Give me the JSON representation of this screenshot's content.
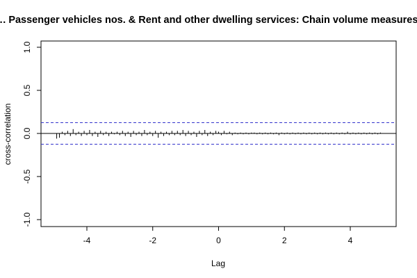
{
  "chart_data": {
    "type": "bar",
    "title": "…. Passenger vehicles nos. & Rent and other dwelling services: Chain volume measures (",
    "xlabel": "Lag",
    "ylabel": "cross-correlation",
    "xlim": [
      -5.2,
      5.4
    ],
    "ylim": [
      -1.0,
      1.0
    ],
    "x_ticks": [
      -4,
      -2,
      0,
      2,
      4
    ],
    "x_tick_labels": [
      "-4",
      "-2",
      "0",
      "2",
      "4"
    ],
    "y_ticks": [
      -1.0,
      -0.5,
      0.0,
      0.5,
      1.0
    ],
    "y_tick_labels": [
      "-1.0",
      "-0.5",
      "0.0",
      "0.5",
      "1.0"
    ],
    "confidence_band": 0.125,
    "colors": {
      "bars": "#000000",
      "confidence": "#3333cc",
      "zero_line": "#000000"
    },
    "lags": [
      -4.917,
      -4.833,
      -4.75,
      -4.667,
      -4.583,
      -4.5,
      -4.417,
      -4.333,
      -4.25,
      -4.167,
      -4.083,
      -4.0,
      -3.917,
      -3.833,
      -3.75,
      -3.667,
      -3.583,
      -3.5,
      -3.417,
      -3.333,
      -3.25,
      -3.167,
      -3.083,
      -3.0,
      -2.917,
      -2.833,
      -2.75,
      -2.667,
      -2.583,
      -2.5,
      -2.417,
      -2.333,
      -2.25,
      -2.167,
      -2.083,
      -2.0,
      -1.917,
      -1.833,
      -1.75,
      -1.667,
      -1.583,
      -1.5,
      -1.417,
      -1.333,
      -1.25,
      -1.167,
      -1.083,
      -1.0,
      -0.917,
      -0.833,
      -0.75,
      -0.667,
      -0.583,
      -0.5,
      -0.417,
      -0.333,
      -0.25,
      -0.167,
      -0.083,
      0.0,
      0.083,
      0.167,
      0.25,
      0.333,
      0.417,
      0.5,
      0.583,
      0.667,
      0.75,
      0.833,
      0.917,
      1.0,
      1.083,
      1.167,
      1.25,
      1.333,
      1.417,
      1.5,
      1.583,
      1.667,
      1.75,
      1.833,
      1.917,
      2.0,
      2.083,
      2.167,
      2.25,
      2.333,
      2.417,
      2.5,
      2.583,
      2.667,
      2.75,
      2.833,
      2.917,
      3.0,
      3.083,
      3.167,
      3.25,
      3.333,
      3.417,
      3.5,
      3.583,
      3.667,
      3.75,
      3.833,
      3.917,
      4.0,
      4.083,
      4.167,
      4.25,
      4.333,
      4.417,
      4.5,
      4.583,
      4.667,
      4.75,
      4.833,
      4.917
    ],
    "values": [
      -0.06,
      -0.05,
      0.02,
      -0.02,
      0.03,
      -0.03,
      0.05,
      -0.02,
      0.02,
      -0.03,
      0.03,
      -0.02,
      0.04,
      -0.03,
      0.02,
      -0.04,
      0.03,
      -0.02,
      0.02,
      -0.03,
      0.02,
      -0.01,
      0.02,
      -0.02,
      0.03,
      -0.03,
      0.02,
      -0.04,
      0.03,
      -0.02,
      0.02,
      -0.03,
      0.04,
      -0.02,
      0.02,
      -0.03,
      0.03,
      -0.05,
      0.02,
      -0.03,
      0.02,
      -0.02,
      0.03,
      -0.02,
      0.03,
      -0.02,
      0.04,
      -0.03,
      0.03,
      -0.02,
      0.02,
      -0.04,
      0.03,
      -0.02,
      0.04,
      -0.03,
      0.02,
      -0.02,
      0.03,
      0.02,
      -0.02,
      0.03,
      -0.01,
      0.02,
      -0.02,
      0.01,
      -0.01,
      0.01,
      -0.01,
      0.01,
      -0.01,
      0.01,
      0.01,
      -0.01,
      0.01,
      -0.01,
      0.01,
      -0.01,
      0.01,
      -0.01,
      0.01,
      -0.02,
      0.01,
      -0.01,
      0.01,
      -0.01,
      0.01,
      -0.01,
      0.01,
      -0.01,
      0.01,
      -0.01,
      0.01,
      -0.01,
      0.01,
      -0.01,
      0.01,
      -0.01,
      0.01,
      -0.01,
      0.01,
      -0.01,
      0.01,
      -0.01,
      0.01,
      -0.01,
      0.02,
      -0.01,
      0.01,
      -0.01,
      0.01,
      -0.01,
      0.01,
      -0.01,
      0.01,
      -0.01,
      0.01,
      -0.01,
      0.01
    ]
  }
}
